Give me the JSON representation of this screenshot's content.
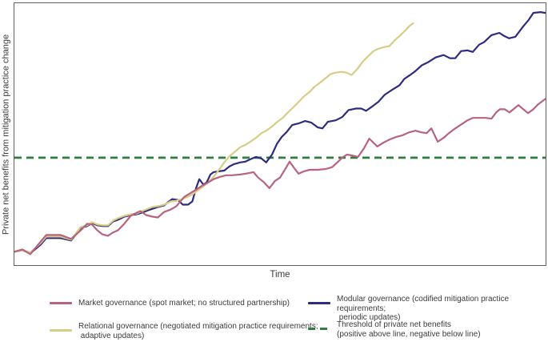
{
  "chart_data": {
    "type": "line",
    "title": "",
    "xlabel": "Time",
    "ylabel": "Private net benefits from mitigation practice change",
    "xlim": [
      0,
      100
    ],
    "ylim": [
      -41,
      59
    ],
    "grid": false,
    "legend_position": "bottom",
    "threshold": {
      "value": 0,
      "style": "dashed",
      "color": "#2f7d3f"
    },
    "series": [
      {
        "id": "market-governance",
        "name": "Market governance (spot market; no structured partnership)",
        "color": "#b8637f",
        "points": [
          [
            0,
            -35.9
          ],
          [
            1.5,
            -35
          ],
          [
            3,
            -36.8
          ],
          [
            5,
            -31.9
          ],
          [
            6,
            -29.5
          ],
          [
            8.7,
            -29.5
          ],
          [
            10.7,
            -31
          ],
          [
            12.5,
            -27.7
          ],
          [
            13.7,
            -25.2
          ],
          [
            14.6,
            -25.5
          ],
          [
            15.6,
            -27.7
          ],
          [
            16.5,
            -29.2
          ],
          [
            17.6,
            -29.8
          ],
          [
            18.5,
            -28.6
          ],
          [
            19.5,
            -27.7
          ],
          [
            20.7,
            -25.2
          ],
          [
            21.9,
            -22.2
          ],
          [
            23,
            -21
          ],
          [
            23.7,
            -20.4
          ],
          [
            24.8,
            -21.9
          ],
          [
            26,
            -22.5
          ],
          [
            27,
            -22.8
          ],
          [
            28.2,
            -20.7
          ],
          [
            29.4,
            -19.8
          ],
          [
            30.5,
            -18.5
          ],
          [
            32,
            -14.9
          ],
          [
            33,
            -13.7
          ],
          [
            34.2,
            -12.2
          ],
          [
            35.4,
            -10.6
          ],
          [
            36.5,
            -9.4
          ],
          [
            37.5,
            -8.2
          ],
          [
            38.7,
            -7.3
          ],
          [
            39.9,
            -6.7
          ],
          [
            41,
            -6.7
          ],
          [
            42.5,
            -6.4
          ],
          [
            43.5,
            -6.1
          ],
          [
            45,
            -5.5
          ],
          [
            45.9,
            -7.6
          ],
          [
            47,
            -9.4
          ],
          [
            48,
            -11.6
          ],
          [
            49.1,
            -8.8
          ],
          [
            50,
            -7.6
          ],
          [
            50.9,
            -4.6
          ],
          [
            51.8,
            -1.5
          ],
          [
            52.7,
            -4
          ],
          [
            53.5,
            -6.1
          ],
          [
            54.5,
            -5.2
          ],
          [
            55.6,
            -4.6
          ],
          [
            57.1,
            -4.6
          ],
          [
            58.6,
            -4.3
          ],
          [
            59.8,
            -3.6
          ],
          [
            60.8,
            -1.8
          ],
          [
            61.7,
            0
          ],
          [
            62.6,
            1.2
          ],
          [
            63.5,
            0.9
          ],
          [
            64.7,
            0.3
          ],
          [
            65.8,
            3.6
          ],
          [
            66.8,
            7.3
          ],
          [
            67.7,
            5.5
          ],
          [
            68.3,
            4.3
          ],
          [
            69.5,
            5.8
          ],
          [
            70.7,
            7
          ],
          [
            71.8,
            7.9
          ],
          [
            73,
            8.5
          ],
          [
            74.3,
            9.7
          ],
          [
            75.5,
            10.3
          ],
          [
            76.6,
            9.7
          ],
          [
            77.6,
            9.4
          ],
          [
            78.5,
            11.2
          ],
          [
            79.7,
            6.1
          ],
          [
            80.8,
            7.6
          ],
          [
            81.8,
            9.4
          ],
          [
            83,
            11.2
          ],
          [
            84.2,
            12.8
          ],
          [
            85.3,
            14.3
          ],
          [
            86.3,
            15.2
          ],
          [
            87.5,
            15.2
          ],
          [
            88.7,
            15.2
          ],
          [
            89.8,
            14.9
          ],
          [
            90.7,
            17.3
          ],
          [
            91.4,
            18.5
          ],
          [
            92.3,
            18.5
          ],
          [
            93.2,
            17.3
          ],
          [
            94.1,
            18.8
          ],
          [
            94.9,
            20.1
          ],
          [
            95.8,
            18.5
          ],
          [
            96.7,
            17
          ],
          [
            97.7,
            18.5
          ],
          [
            98.6,
            20.4
          ],
          [
            99.4,
            21.6
          ],
          [
            100,
            22.5
          ]
        ]
      },
      {
        "id": "relational-governance",
        "name": "Relational governance (negotiated mitigation practice requirements; adaptive updates)",
        "color": "#d6cd87",
        "points": [
          [
            0,
            -35.9
          ],
          [
            1.5,
            -35.3
          ],
          [
            3,
            -36.2
          ],
          [
            5,
            -32.5
          ],
          [
            6,
            -30.1
          ],
          [
            8.7,
            -30.1
          ],
          [
            10.7,
            -31.3
          ],
          [
            12.5,
            -26.4
          ],
          [
            13.7,
            -25.8
          ],
          [
            14.6,
            -24.6
          ],
          [
            15.6,
            -25.5
          ],
          [
            16.7,
            -25.8
          ],
          [
            17.6,
            -25.8
          ],
          [
            18.6,
            -24
          ],
          [
            19.5,
            -23.1
          ],
          [
            20.7,
            -22.2
          ],
          [
            21.9,
            -21.6
          ],
          [
            23,
            -21.3
          ],
          [
            24,
            -20.4
          ],
          [
            25.1,
            -19.5
          ],
          [
            26,
            -18.8
          ],
          [
            27,
            -18.5
          ],
          [
            28.2,
            -17.9
          ],
          [
            29.4,
            -16.7
          ],
          [
            30.5,
            -16.4
          ],
          [
            31.5,
            -15.8
          ],
          [
            32.6,
            -14.9
          ],
          [
            33.5,
            -14
          ],
          [
            34.5,
            -12.5
          ],
          [
            35.4,
            -11.2
          ],
          [
            36.5,
            -9.4
          ],
          [
            37.5,
            -7.3
          ],
          [
            38.4,
            -4.9
          ],
          [
            39.5,
            -1.8
          ],
          [
            40.5,
            0.6
          ],
          [
            41.4,
            2.1
          ],
          [
            42.5,
            4
          ],
          [
            43.5,
            4.9
          ],
          [
            44.4,
            6.1
          ],
          [
            45.5,
            7.6
          ],
          [
            46.5,
            9.4
          ],
          [
            47.4,
            10.3
          ],
          [
            48.5,
            11.9
          ],
          [
            49.5,
            13.7
          ],
          [
            50.5,
            15.2
          ],
          [
            51.5,
            17.3
          ],
          [
            52.6,
            19.5
          ],
          [
            53.5,
            21.3
          ],
          [
            54.5,
            23.4
          ],
          [
            55.6,
            25.2
          ],
          [
            56.5,
            27.1
          ],
          [
            57.5,
            28.6
          ],
          [
            58.6,
            30.4
          ],
          [
            59.5,
            31.9
          ],
          [
            60.5,
            32.5
          ],
          [
            61.6,
            32.8
          ],
          [
            62.5,
            32.5
          ],
          [
            63.5,
            31.6
          ],
          [
            64.6,
            34
          ],
          [
            65.5,
            36.5
          ],
          [
            66.5,
            38.6
          ],
          [
            67.6,
            40.7
          ],
          [
            68.5,
            41.6
          ],
          [
            69.5,
            42.2
          ],
          [
            70.6,
            42.6
          ],
          [
            71.5,
            44.7
          ],
          [
            72.5,
            46.5
          ],
          [
            73.6,
            48.6
          ],
          [
            74.3,
            50.2
          ],
          [
            75.1,
            51.4
          ]
        ]
      },
      {
        "id": "modular-governance",
        "name": "Modular governance (codified mitigation practice requirements; periodic updates)",
        "color": "#2e2c7e",
        "points": [
          [
            0,
            -35.9
          ],
          [
            1.5,
            -35.3
          ],
          [
            3,
            -36.5
          ],
          [
            5,
            -33.1
          ],
          [
            6,
            -30.7
          ],
          [
            8.7,
            -30.7
          ],
          [
            10.7,
            -31.6
          ],
          [
            12.5,
            -26.7
          ],
          [
            13.7,
            -26.1
          ],
          [
            14.6,
            -24.9
          ],
          [
            15.6,
            -25.8
          ],
          [
            16.7,
            -26.1
          ],
          [
            17.6,
            -26.1
          ],
          [
            18.6,
            -24.3
          ],
          [
            19.5,
            -23.7
          ],
          [
            20.7,
            -22.5
          ],
          [
            21.9,
            -21.9
          ],
          [
            23,
            -21.6
          ],
          [
            24,
            -21
          ],
          [
            25.1,
            -20.1
          ],
          [
            26,
            -19.5
          ],
          [
            27,
            -18.8
          ],
          [
            28.2,
            -18.2
          ],
          [
            29.1,
            -16.7
          ],
          [
            29.7,
            -15.8
          ],
          [
            30.8,
            -16.1
          ],
          [
            31.7,
            -17.9
          ],
          [
            32.7,
            -17.9
          ],
          [
            33.5,
            -16.7
          ],
          [
            34.2,
            -11.6
          ],
          [
            34.8,
            -8.2
          ],
          [
            35.6,
            -10.3
          ],
          [
            36.2,
            -9.4
          ],
          [
            36.9,
            -6.4
          ],
          [
            37.5,
            -5.5
          ],
          [
            38.4,
            -5.2
          ],
          [
            39.5,
            -4.9
          ],
          [
            40.5,
            -3.3
          ],
          [
            41.4,
            -2.4
          ],
          [
            42.5,
            -1.8
          ],
          [
            43.5,
            -1.5
          ],
          [
            44.4,
            -0.6
          ],
          [
            45.5,
            0.3
          ],
          [
            46.5,
            -0.3
          ],
          [
            47.4,
            -1.8
          ],
          [
            48.5,
            1.2
          ],
          [
            49.4,
            5.2
          ],
          [
            50.3,
            7.9
          ],
          [
            51.2,
            9.7
          ],
          [
            52.3,
            12.5
          ],
          [
            53.5,
            13.1
          ],
          [
            54.7,
            14
          ],
          [
            55.9,
            13.4
          ],
          [
            57.1,
            11.6
          ],
          [
            58,
            11.2
          ],
          [
            59,
            13.7
          ],
          [
            60.5,
            14.3
          ],
          [
            61.7,
            15.5
          ],
          [
            62.9,
            18.2
          ],
          [
            64.3,
            18.8
          ],
          [
            65.3,
            18.8
          ],
          [
            66.2,
            17.9
          ],
          [
            67.3,
            19.5
          ],
          [
            68.5,
            21.3
          ],
          [
            69.7,
            24
          ],
          [
            71,
            25.8
          ],
          [
            72.5,
            27.7
          ],
          [
            73.4,
            30.1
          ],
          [
            74.5,
            31.6
          ],
          [
            75.5,
            33.1
          ],
          [
            76.7,
            35.3
          ],
          [
            77.9,
            36.5
          ],
          [
            79.3,
            38.3
          ],
          [
            80.8,
            39.2
          ],
          [
            82,
            38
          ],
          [
            83,
            38
          ],
          [
            84.1,
            40.7
          ],
          [
            85.3,
            41
          ],
          [
            86.3,
            40.4
          ],
          [
            87.5,
            43.2
          ],
          [
            88.4,
            44.1
          ],
          [
            89.8,
            46.8
          ],
          [
            91.3,
            47.7
          ],
          [
            92.2,
            46.5
          ],
          [
            93.1,
            45.6
          ],
          [
            94.3,
            46.2
          ],
          [
            95.8,
            50.2
          ],
          [
            96.8,
            52.6
          ],
          [
            97.7,
            55.3
          ],
          [
            99,
            55.6
          ],
          [
            100,
            55.3
          ]
        ]
      }
    ]
  },
  "legend": {
    "items": [
      {
        "label": "Market governance (spot market; no structured partnership)",
        "swatch": "solid",
        "series_index": 0
      },
      {
        "label": "Relational governance (negotiated mitigation practice requirements;\n adaptive updates)",
        "swatch": "solid",
        "series_index": 1
      },
      {
        "label": "Modular governance (codified mitigation practice requirements;\n periodic updates)",
        "swatch": "solid",
        "series_index": 2
      },
      {
        "label": "Threshold of private net benefits\n(positive above line, negative below line)",
        "swatch": "dashed",
        "color": "#2f7d3f"
      }
    ]
  }
}
